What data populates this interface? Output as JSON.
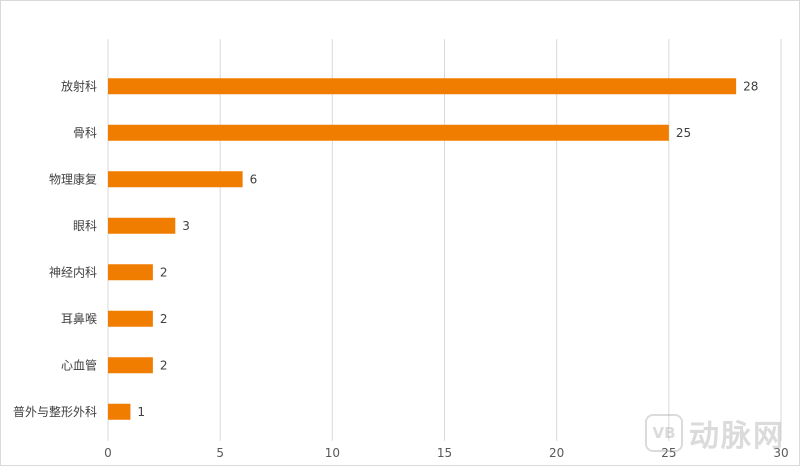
{
  "chart_data": {
    "type": "bar",
    "orientation": "horizontal",
    "categories": [
      "放射科",
      "骨科",
      "物理康复",
      "眼科",
      "神经内科",
      "耳鼻喉",
      "心血管",
      "普外与整形外科"
    ],
    "values": [
      28,
      25,
      6,
      3,
      2,
      2,
      2,
      1
    ],
    "xlim": [
      0,
      30
    ],
    "xticks": [
      0,
      5,
      10,
      15,
      20,
      25,
      30
    ],
    "grid": true,
    "bar_color": "#F07C00",
    "legend": "none"
  },
  "watermark": {
    "badge": "VB",
    "text": "动脉网"
  }
}
